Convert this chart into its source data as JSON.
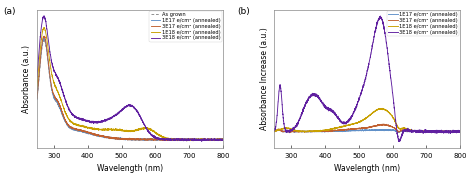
{
  "panel_a_label": "(a)",
  "panel_b_label": "(b)",
  "xlabel": "Wavelength (nm)",
  "ylabel_a": "Absorbance (a.u.)",
  "ylabel_b": "Absorbance Increase (a.u.)",
  "xmin": 250,
  "xmax": 800,
  "xticks": [
    300,
    400,
    500,
    600,
    700,
    800
  ],
  "legend_a": [
    "As grown",
    "1E17 e/cm² (annealed)",
    "3E17 e/cm² (annealed)",
    "1E18 e/cm² (annealed)",
    "3E18 e/cm² (annealed)"
  ],
  "legend_b": [
    "1E17 e/cm² (annealed)",
    "3E17 e/cm² (annealed)",
    "1E18 e/cm² (annealed)",
    "3E18 e/cm² (annealed)"
  ],
  "colors_a": [
    "#888888",
    "#6090c8",
    "#c06030",
    "#c8a000",
    "#6020a0"
  ],
  "colors_b": [
    "#6090c8",
    "#c06030",
    "#c8a000",
    "#6020a0"
  ],
  "bg_color": "#ffffff",
  "font_size": 5.5,
  "lw": 0.65
}
